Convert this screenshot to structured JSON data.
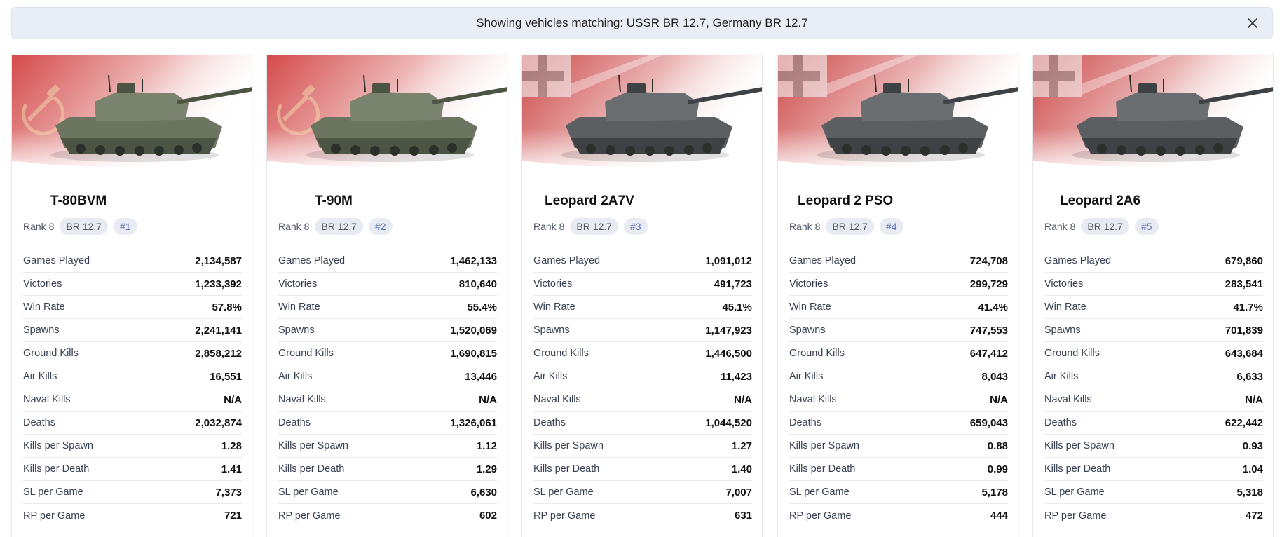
{
  "banner": {
    "text": "Showing vehicles matching: USSR BR 12.7, Germany BR 12.7",
    "close_icon": "close-icon"
  },
  "stat_labels": [
    "Games Played",
    "Victories",
    "Win Rate",
    "Spawns",
    "Ground Kills",
    "Air Kills",
    "Naval Kills",
    "Deaths",
    "Kills per Spawn",
    "Kills per Death",
    "SL per Game",
    "RP per Game"
  ],
  "colors": {
    "ussr_flag": "#cc2b2b",
    "germany_flag": "#c42a2a",
    "chip_bg": "#e8ebf1",
    "chip_position_text": "#5a6fb6",
    "banner_bg": "#e9edf5"
  },
  "vehicles": [
    {
      "name": "T-80BVM",
      "nation_emblem": "hammer-sickle-icon",
      "rank": "Rank 8",
      "br": "BR 12.7",
      "position": "#1",
      "stats": [
        "2,134,587",
        "1,233,392",
        "57.8%",
        "2,241,141",
        "2,858,212",
        "16,551",
        "N/A",
        "2,032,874",
        "1.28",
        "1.41",
        "7,373",
        "721"
      ]
    },
    {
      "name": "T-90M",
      "nation_emblem": "hammer-sickle-icon",
      "rank": "Rank 8",
      "br": "BR 12.7",
      "position": "#2",
      "stats": [
        "1,462,133",
        "810,640",
        "55.4%",
        "1,520,069",
        "1,690,815",
        "13,446",
        "N/A",
        "1,326,061",
        "1.12",
        "1.29",
        "6,630",
        "602"
      ]
    },
    {
      "name": "Leopard 2A7V",
      "nation_emblem": "iron-cross-icon",
      "rank": "Rank 8",
      "br": "BR 12.7",
      "position": "#3",
      "stats": [
        "1,091,012",
        "491,723",
        "45.1%",
        "1,147,923",
        "1,446,500",
        "11,423",
        "N/A",
        "1,044,520",
        "1.27",
        "1.40",
        "7,007",
        "631"
      ]
    },
    {
      "name": "Leopard 2 PSO",
      "nation_emblem": "iron-cross-icon",
      "rank": "Rank 8",
      "br": "BR 12.7",
      "position": "#4",
      "stats": [
        "724,708",
        "299,729",
        "41.4%",
        "747,553",
        "647,412",
        "8,043",
        "N/A",
        "659,043",
        "0.88",
        "0.99",
        "5,178",
        "444"
      ]
    },
    {
      "name": "Leopard 2A6",
      "nation_emblem": "iron-cross-icon",
      "rank": "Rank 8",
      "br": "BR 12.7",
      "position": "#5",
      "stats": [
        "679,860",
        "283,541",
        "41.7%",
        "701,839",
        "643,684",
        "6,633",
        "N/A",
        "622,442",
        "0.93",
        "1.04",
        "5,318",
        "472"
      ]
    }
  ]
}
